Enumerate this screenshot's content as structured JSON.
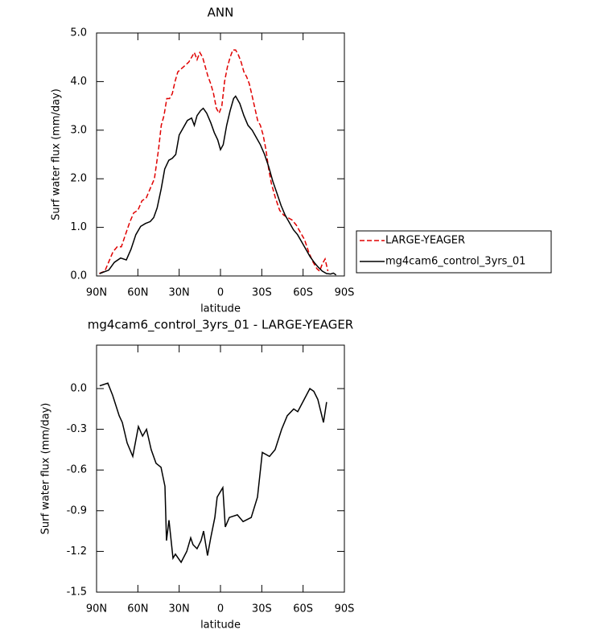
{
  "chart_data": [
    {
      "type": "line",
      "title": "ANN",
      "xlabel": "latitude",
      "ylabel": "Surf water flux (mm/day)",
      "xlim": [
        90,
        -90
      ],
      "xticks": [
        {
          "value": 90,
          "label": "90N"
        },
        {
          "value": 60,
          "label": "60N"
        },
        {
          "value": 30,
          "label": "30N"
        },
        0,
        {
          "value": -30,
          "label": "30S"
        },
        {
          "value": -60,
          "label": "60S"
        },
        {
          "value": -90,
          "label": "90S"
        }
      ],
      "ylim": [
        0,
        5
      ],
      "yticks": [
        {
          "value": 0,
          "label": "0.0"
        },
        {
          "value": 1,
          "label": "1.0"
        },
        {
          "value": 2,
          "label": "2.0"
        },
        {
          "value": 3,
          "label": "3.0"
        },
        {
          "value": 4,
          "label": "4.0"
        },
        {
          "value": 5,
          "label": "5.0"
        }
      ],
      "legend": "right",
      "series": [
        {
          "name": "LARGE-YEAGER",
          "color": "#e00000",
          "line_style": "dashed",
          "x": [
            88,
            84,
            81,
            78,
            75,
            72,
            69,
            66,
            63,
            60,
            57,
            54,
            51,
            48,
            45,
            43,
            41,
            39,
            37,
            35,
            33,
            31,
            29,
            27,
            25,
            23,
            21,
            19,
            17,
            15,
            13,
            11,
            9,
            7,
            5,
            3,
            1,
            -1,
            -3,
            -5,
            -7,
            -9,
            -11,
            -13,
            -15,
            -17,
            -19,
            -21,
            -23,
            -25,
            -27,
            -29,
            -31,
            -33,
            -35,
            -37,
            -40,
            -43,
            -46,
            -49,
            -52,
            -55,
            -58,
            -61,
            -64,
            -67,
            -70,
            -72,
            -74,
            -76,
            -78
          ],
          "values": [
            0.05,
            0.1,
            0.3,
            0.5,
            0.6,
            0.6,
            0.85,
            1.1,
            1.3,
            1.35,
            1.55,
            1.6,
            1.8,
            2.0,
            2.6,
            3.1,
            3.3,
            3.65,
            3.65,
            3.75,
            4.0,
            4.2,
            4.25,
            4.3,
            4.35,
            4.4,
            4.5,
            4.6,
            4.45,
            4.6,
            4.5,
            4.3,
            4.1,
            3.95,
            3.75,
            3.45,
            3.35,
            3.5,
            4.0,
            4.3,
            4.5,
            4.65,
            4.65,
            4.55,
            4.4,
            4.2,
            4.1,
            3.95,
            3.7,
            3.45,
            3.2,
            3.1,
            2.9,
            2.6,
            2.2,
            1.9,
            1.6,
            1.35,
            1.25,
            1.2,
            1.15,
            1.05,
            0.9,
            0.75,
            0.5,
            0.3,
            0.15,
            0.1,
            0.25,
            0.35,
            0.1
          ]
        },
        {
          "name": "mg4cam6_control_3yrs_01",
          "color": "#000000",
          "line_style": "solid",
          "x": [
            87.7,
            81.2,
            77.1,
            72.5,
            68.4,
            65,
            61.5,
            58,
            54.5,
            51,
            48.5,
            46,
            43,
            40.5,
            37.5,
            35,
            32.5,
            30,
            27,
            24,
            21,
            19,
            17,
            14.5,
            12.5,
            10,
            7,
            4.5,
            2,
            0,
            -2,
            -4.5,
            -7,
            -9.5,
            -11,
            -14,
            -17,
            -20,
            -23,
            -26,
            -29,
            -32,
            -35,
            -38,
            -41,
            -44,
            -47,
            -50,
            -53,
            -56,
            -59,
            -62,
            -65,
            -68,
            -71,
            -74,
            -77,
            -80,
            -82,
            -84
          ],
          "values": [
            0.05,
            0.12,
            0.28,
            0.37,
            0.33,
            0.55,
            0.85,
            1.02,
            1.08,
            1.12,
            1.2,
            1.4,
            1.8,
            2.2,
            2.38,
            2.42,
            2.5,
            2.9,
            3.05,
            3.2,
            3.25,
            3.1,
            3.3,
            3.4,
            3.45,
            3.35,
            3.15,
            2.95,
            2.8,
            2.6,
            2.7,
            3.1,
            3.4,
            3.65,
            3.7,
            3.55,
            3.3,
            3.1,
            3.0,
            2.85,
            2.7,
            2.5,
            2.25,
            1.95,
            1.7,
            1.45,
            1.25,
            1.1,
            0.95,
            0.85,
            0.7,
            0.55,
            0.4,
            0.28,
            0.18,
            0.1,
            0.05,
            0.04,
            0.06,
            0.02
          ]
        }
      ]
    },
    {
      "type": "line",
      "title": "mg4cam6_control_3yrs_01 - LARGE-YEAGER",
      "xlabel": "latitude",
      "ylabel": "Surf water flux (mm/day)",
      "xlim": [
        90,
        -90
      ],
      "xticks": [
        {
          "value": 90,
          "label": "90N"
        },
        {
          "value": 60,
          "label": "60N"
        },
        {
          "value": 30,
          "label": "30N"
        },
        0,
        {
          "value": -30,
          "label": "30S"
        },
        {
          "value": -60,
          "label": "60S"
        },
        {
          "value": -90,
          "label": "90S"
        }
      ],
      "ylim": [
        -1.5,
        0.32
      ],
      "yticks": [
        {
          "value": 0,
          "label": "0.0"
        },
        -0.3,
        -0.6,
        -0.9,
        -1.2,
        -1.5
      ],
      "series": [
        {
          "color": "#000000",
          "line_style": "solid",
          "x": [
            87.7,
            81.8,
            78.3,
            73.6,
            71.3,
            67.8,
            63.7,
            59.6,
            56.6,
            53.7,
            50.3,
            46.8,
            43.2,
            40.3,
            39.2,
            37.4,
            34.5,
            32.7,
            28.6,
            24.5,
            21.6,
            19.9,
            17,
            14.1,
            12.3,
            9.4,
            7.1,
            4.1,
            2.4,
            -1.7,
            -3.5,
            -6.4,
            -12.3,
            -16.4,
            -22.3,
            -26.9,
            -30.4,
            -35.6,
            -39.7,
            -44.4,
            -48.5,
            -53.2,
            -56.1,
            -60.8,
            -64.9,
            -67.8,
            -70.7,
            -74.8,
            -77.1
          ],
          "values": [
            0.02,
            0.04,
            -0.05,
            -0.2,
            -0.25,
            -0.4,
            -0.5,
            -0.28,
            -0.35,
            -0.3,
            -0.45,
            -0.55,
            -0.58,
            -0.72,
            -1.12,
            -0.97,
            -1.25,
            -1.22,
            -1.28,
            -1.2,
            -1.1,
            -1.15,
            -1.18,
            -1.12,
            -1.05,
            -1.23,
            -1.1,
            -0.95,
            -0.8,
            -0.73,
            -1.02,
            -0.95,
            -0.93,
            -0.98,
            -0.95,
            -0.8,
            -0.47,
            -0.5,
            -0.45,
            -0.3,
            -0.2,
            -0.15,
            -0.17,
            -0.08,
            0.0,
            -0.02,
            -0.08,
            -0.25,
            -0.1
          ]
        }
      ]
    }
  ]
}
